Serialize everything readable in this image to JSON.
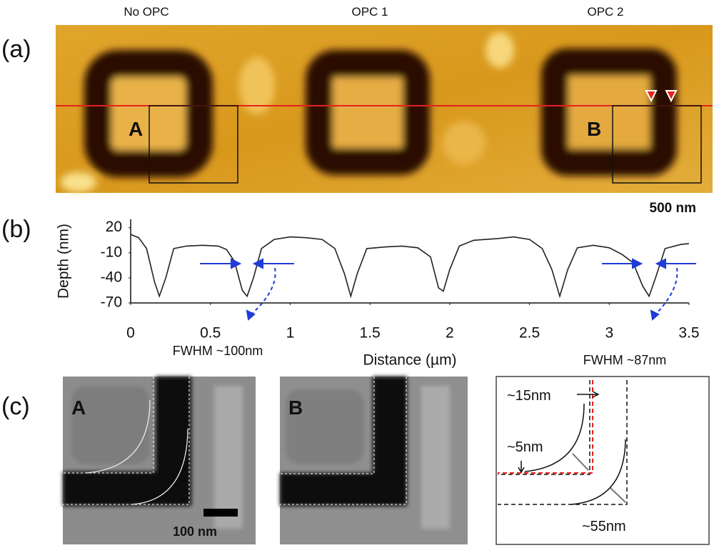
{
  "panel_a": {
    "label": "(a)",
    "columns": [
      "No OPC",
      "OPC 1",
      "OPC 2"
    ],
    "box_labels": [
      "A",
      "B"
    ],
    "scale_bar": "500 nm"
  },
  "chart_data": {
    "type": "line",
    "panel_label": "(b)",
    "xlabel": "Distance (µm)",
    "ylabel": "Depth (nm)",
    "x": [
      0,
      0.05,
      0.1,
      0.15,
      0.18,
      0.22,
      0.27,
      0.35,
      0.45,
      0.55,
      0.6,
      0.65,
      0.7,
      0.73,
      0.77,
      0.82,
      0.9,
      1.0,
      1.1,
      1.2,
      1.28,
      1.34,
      1.38,
      1.42,
      1.48,
      1.6,
      1.7,
      1.8,
      1.88,
      1.93,
      1.96,
      2.0,
      2.06,
      2.15,
      2.3,
      2.4,
      2.5,
      2.58,
      2.64,
      2.69,
      2.74,
      2.8,
      2.9,
      3.0,
      3.08,
      3.15,
      3.21,
      3.25,
      3.29,
      3.35,
      3.45,
      3.5
    ],
    "series": [
      {
        "color": "#222222",
        "values": [
          12,
          8,
          -5,
          -45,
          -62,
          -40,
          -5,
          -2,
          -1,
          -2,
          -6,
          -20,
          -55,
          -62,
          -40,
          -5,
          6,
          9,
          8,
          6,
          -5,
          -35,
          -62,
          -35,
          -5,
          -3,
          -2,
          -4,
          -15,
          -52,
          -56,
          -30,
          -2,
          5,
          7,
          9,
          6,
          -5,
          -30,
          -62,
          -30,
          -4,
          -1,
          -4,
          -12,
          -22,
          -50,
          -62,
          -40,
          -5,
          0,
          1
        ]
      }
    ],
    "xlim": [
      0,
      3.5
    ],
    "ylim": [
      -70,
      30
    ],
    "xticks": [
      0,
      0.5,
      1,
      1.5,
      2,
      2.5,
      3,
      3.5
    ],
    "yticks": [
      20,
      -10,
      -40,
      -70
    ],
    "annotations": [
      "FWHM ~100nm",
      "FWHM ~87nm"
    ]
  },
  "panel_c": {
    "label": "(c)",
    "image_labels": [
      "A",
      "B"
    ],
    "scale_bar": "100 nm",
    "diagram_labels": [
      "~15nm",
      "~5nm",
      "~55nm"
    ]
  }
}
